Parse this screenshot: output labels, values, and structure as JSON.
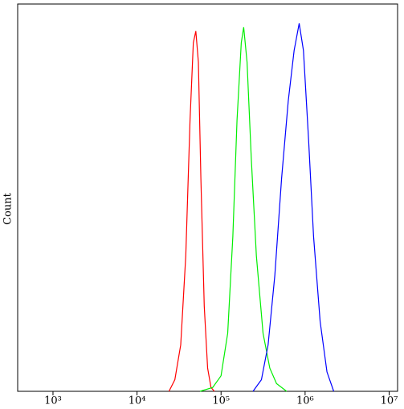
{
  "chart_data": {
    "type": "line",
    "y_label": "Count",
    "log_x": true,
    "xlim": [
      380,
      12600000
    ],
    "ylim": [
      0,
      100
    ],
    "xticks": [
      {
        "value": 1000,
        "label": "10³"
      },
      {
        "value": 10000,
        "label": "10⁴"
      },
      {
        "value": 100000,
        "label": "10⁵"
      },
      {
        "value": 1000000,
        "label": "10⁶"
      },
      {
        "value": 10000000,
        "label": "10⁷"
      }
    ],
    "series": [
      {
        "color": "#ff0000",
        "x": [
          24000,
          28200,
          33100,
          38000,
          42700,
          46800,
          50100,
          53700,
          57500,
          63100,
          69200,
          75900,
          83200
        ],
        "values": [
          0,
          3,
          12,
          35,
          70,
          90,
          93,
          85,
          55,
          22,
          6,
          1,
          0
        ]
      },
      {
        "color": "#00ee00",
        "x": [
          56200,
          79400,
          100000,
          120000,
          138000,
          155000,
          174000,
          186000,
          204000,
          229000,
          263000,
          316000,
          380000,
          457000,
          603000
        ],
        "values": [
          0,
          1,
          4,
          15,
          40,
          70,
          90,
          94,
          85,
          60,
          35,
          15,
          6,
          2,
          0
        ]
      },
      {
        "color": "#0000ff",
        "x": [
          240000,
          302000,
          363000,
          437000,
          525000,
          631000,
          741000,
          851000,
          955000,
          1100000,
          1260000,
          1510000,
          1820000,
          2190000
        ],
        "values": [
          0,
          3,
          12,
          30,
          55,
          75,
          88,
          95,
          88,
          65,
          40,
          18,
          5,
          0
        ]
      }
    ]
  }
}
